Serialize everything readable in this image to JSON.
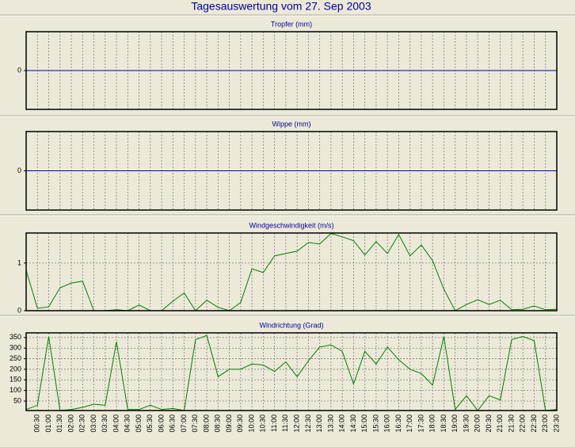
{
  "title": "Tagesauswertung vom 27. Sep 2003",
  "chart_data": [
    {
      "type": "line",
      "title": "Tropfer (mm)",
      "grid": true,
      "series": [
        {
          "color": "#0000c0",
          "values": [
            0,
            0,
            0,
            0,
            0,
            0,
            0,
            0,
            0,
            0,
            0,
            0,
            0,
            0,
            0,
            0,
            0,
            0,
            0,
            0,
            0,
            0,
            0,
            0,
            0,
            0,
            0,
            0,
            0,
            0,
            0,
            0,
            0,
            0,
            0,
            0,
            0,
            0,
            0,
            0,
            0,
            0,
            0,
            0,
            0,
            0,
            0,
            0
          ]
        }
      ],
      "ylim": [
        -1,
        1
      ],
      "yticks": [
        0
      ]
    },
    {
      "type": "line",
      "title": "Wippe (mm)",
      "grid": true,
      "series": [
        {
          "color": "#0000c0",
          "values": [
            0,
            0,
            0,
            0,
            0,
            0,
            0,
            0,
            0,
            0,
            0,
            0,
            0,
            0,
            0,
            0,
            0,
            0,
            0,
            0,
            0,
            0,
            0,
            0,
            0,
            0,
            0,
            0,
            0,
            0,
            0,
            0,
            0,
            0,
            0,
            0,
            0,
            0,
            0,
            0,
            0,
            0,
            0,
            0,
            0,
            0,
            0,
            0
          ]
        }
      ],
      "ylim": [
        -1,
        1
      ],
      "yticks": [
        0
      ]
    },
    {
      "type": "line",
      "title": "Windgeschwindigkeit (m/s)",
      "grid": true,
      "series": [
        {
          "color": "#008000",
          "values": [
            0.85,
            0.05,
            0.08,
            0.48,
            0.58,
            0.62,
            0,
            0,
            0.02,
            0,
            0.12,
            0,
            0,
            0.2,
            0.37,
            0,
            0.22,
            0.07,
            0,
            0.17,
            0.88,
            0.8,
            1.15,
            1.2,
            1.25,
            1.43,
            1.4,
            1.62,
            1.55,
            1.47,
            1.17,
            1.45,
            1.2,
            1.6,
            1.15,
            1.38,
            1.05,
            0.45,
            0,
            0.13,
            0.23,
            0.13,
            0.22,
            0.02,
            0.03,
            0.1,
            0.02,
            0.03
          ]
        }
      ],
      "ylim": [
        0,
        1.63
      ],
      "yticks": [
        0,
        1
      ]
    },
    {
      "type": "line",
      "title": "Windrichtung (Grad)",
      "grid": true,
      "categories": [
        null,
        "00:30",
        "01:00",
        "01:30",
        "02:00",
        "02:30",
        "03:00",
        "03:30",
        "04:00",
        "04:30",
        "05:00",
        "05:30",
        "06:00",
        "06:30",
        "07:00",
        "07:30",
        "08:00",
        "08:30",
        "09:00",
        "09:30",
        "10:00",
        "10:30",
        "11:00",
        "11:30",
        "12:00",
        "12:30",
        "13:00",
        "13:30",
        "14:00",
        "14:30",
        "15:00",
        "15:30",
        "16:00",
        "16:30",
        "17:00",
        "17:30",
        "18:00",
        "18:30",
        "19:00",
        "19:30",
        "20:00",
        "20:30",
        "21:00",
        "21:30",
        "22:00",
        "22:30",
        "23:00",
        "23:30"
      ],
      "series": [
        {
          "color": "#008000",
          "values": [
            10,
            30,
            355,
            5,
            10,
            20,
            35,
            30,
            330,
            10,
            10,
            30,
            10,
            15,
            5,
            340,
            360,
            165,
            200,
            200,
            225,
            220,
            190,
            235,
            165,
            240,
            305,
            315,
            285,
            130,
            285,
            225,
            305,
            245,
            200,
            180,
            125,
            355,
            10,
            75,
            5,
            75,
            55,
            340,
            355,
            335,
            5,
            10
          ]
        }
      ],
      "ylim": [
        5,
        372
      ],
      "yticks": [
        50,
        100,
        150,
        200,
        250,
        300,
        350
      ]
    }
  ]
}
